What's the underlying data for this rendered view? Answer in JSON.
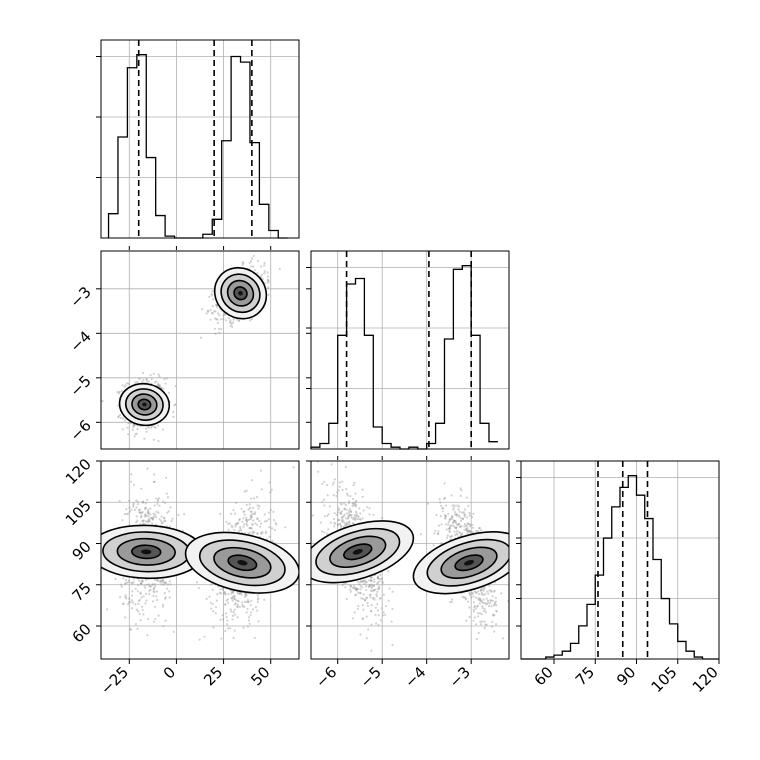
{
  "chart_data": {
    "type": "corner",
    "parameters": [
      {
        "range": [
          -40,
          65
        ],
        "ticks": [
          -25,
          0,
          25,
          50
        ],
        "tick_labels": [
          "−25",
          "0",
          "25",
          "50"
        ],
        "histogram": {
          "bin_edges": [
            -36,
            -31,
            -26,
            -21,
            -16,
            -11,
            -6,
            -1,
            4,
            9,
            14,
            19,
            24,
            29,
            34,
            39,
            44,
            49,
            54,
            59
          ],
          "counts": [
            13,
            54,
            91,
            98,
            43,
            12,
            1,
            0,
            0,
            0,
            2,
            10,
            52,
            97,
            94,
            51,
            18,
            4,
            0
          ],
          "quantiles": [
            -20,
            20,
            40
          ]
        }
      },
      {
        "range": [
          -6.6,
          -2.15
        ],
        "ticks": [
          -6,
          -5,
          -4,
          -3
        ],
        "tick_labels": [
          "−6",
          "−5",
          "−4",
          "−3"
        ],
        "histogram": {
          "bin_edges": [
            -6.6,
            -6.4,
            -6.2,
            -6.0,
            -5.8,
            -5.6,
            -5.4,
            -5.2,
            -5.0,
            -4.8,
            -4.6,
            -4.4,
            -4.2,
            -4.0,
            -3.8,
            -3.6,
            -3.4,
            -3.2,
            -3.0,
            -2.8,
            -2.6,
            -2.4
          ],
          "counts": [
            1,
            3,
            14,
            62,
            90,
            93,
            62,
            12,
            3,
            1,
            0,
            1,
            0,
            3,
            14,
            60,
            98,
            100,
            62,
            14,
            4
          ],
          "quantiles": [
            -5.8,
            -3.95,
            -3.0
          ]
        }
      },
      {
        "range": [
          48,
          120
        ],
        "ticks": [
          60,
          75,
          90,
          105,
          120
        ],
        "tick_labels": [
          "60",
          "75",
          "90",
          "105",
          "120"
        ],
        "histogram": {
          "bin_edges": [
            48,
            51,
            54,
            57,
            60,
            63,
            66,
            69,
            72,
            75,
            78,
            81,
            84,
            87,
            90,
            93,
            96,
            99,
            102,
            105,
            108,
            111,
            114,
            117,
            120
          ],
          "counts": [
            0,
            0,
            0,
            1,
            2,
            4,
            8,
            17,
            28,
            43,
            62,
            78,
            88,
            94,
            84,
            72,
            51,
            31,
            18,
            9,
            4,
            1,
            0,
            0
          ],
          "quantiles": [
            76,
            85,
            94
          ]
        }
      }
    ],
    "pair_panels": [
      {
        "x_param": 0,
        "y_param": 1,
        "modes": [
          {
            "center": [
              -17,
              -5.6
            ],
            "spread": [
              5.5,
              0.28
            ],
            "corr": 0.05,
            "weight": 0.5
          },
          {
            "center": [
              34,
              -3.1
            ],
            "spread": [
              6.5,
              0.3
            ],
            "corr": 0.45,
            "weight": 0.5
          }
        ]
      },
      {
        "x_param": 0,
        "y_param": 2,
        "modes": [
          {
            "center": [
              -16,
              87
            ],
            "spread": [
              7.0,
              10.5
            ],
            "corr": 0.05,
            "weight": 0.5
          },
          {
            "center": [
              35,
              83
            ],
            "spread": [
              7.5,
              10.5
            ],
            "corr": 0.35,
            "weight": 0.5
          }
        ]
      },
      {
        "x_param": 1,
        "y_param": 2,
        "modes": [
          {
            "center": [
              -5.55,
              87
            ],
            "spread": [
              0.3,
              10.5
            ],
            "corr": -0.6,
            "weight": 0.5
          },
          {
            "center": [
              -3.05,
              83
            ],
            "spread": [
              0.3,
              10.5
            ],
            "corr": -0.6,
            "weight": 0.5
          }
        ]
      }
    ]
  }
}
